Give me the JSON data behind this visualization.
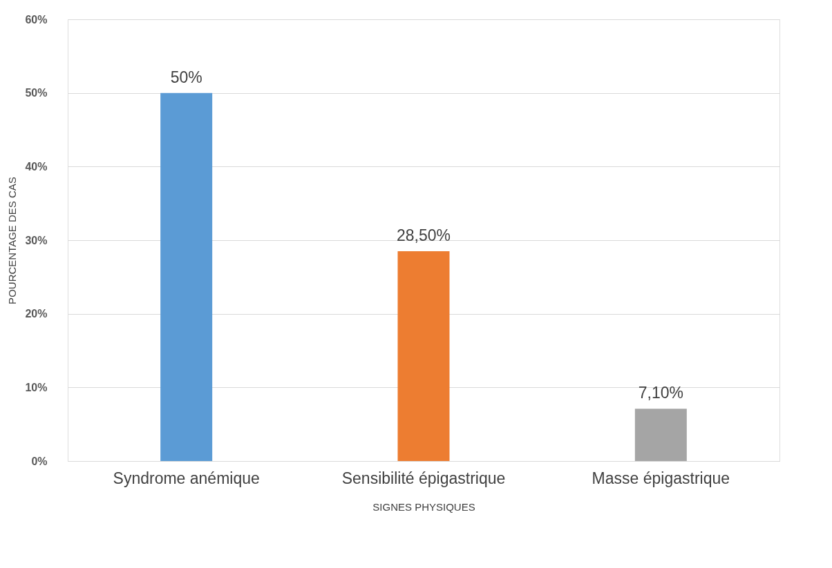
{
  "chart_data": {
    "type": "bar",
    "xlabel": "SIGNES PHYSIQUES",
    "ylabel": "POURCENTAGE DES  CAS",
    "categories": [
      "Syndrome anémique",
      "Sensibilité épigastrique",
      "Masse épigastrique"
    ],
    "values": [
      50,
      28.5,
      7.1
    ],
    "colors": [
      "#5b9bd5",
      "#ed7d31",
      "#a5a5a5"
    ],
    "value_labels": [
      "50%",
      "28,50%",
      "7,10%"
    ],
    "ylim": [
      0,
      60
    ],
    "yticks": [
      {
        "value": 0,
        "label": "0%"
      },
      {
        "value": 10,
        "label": "10%"
      },
      {
        "value": 20,
        "label": "20%"
      },
      {
        "value": 30,
        "label": "30%"
      },
      {
        "value": 40,
        "label": "40%"
      },
      {
        "value": 50,
        "label": "50%"
      },
      {
        "value": 60,
        "label": "60%"
      }
    ],
    "grid": "y"
  }
}
